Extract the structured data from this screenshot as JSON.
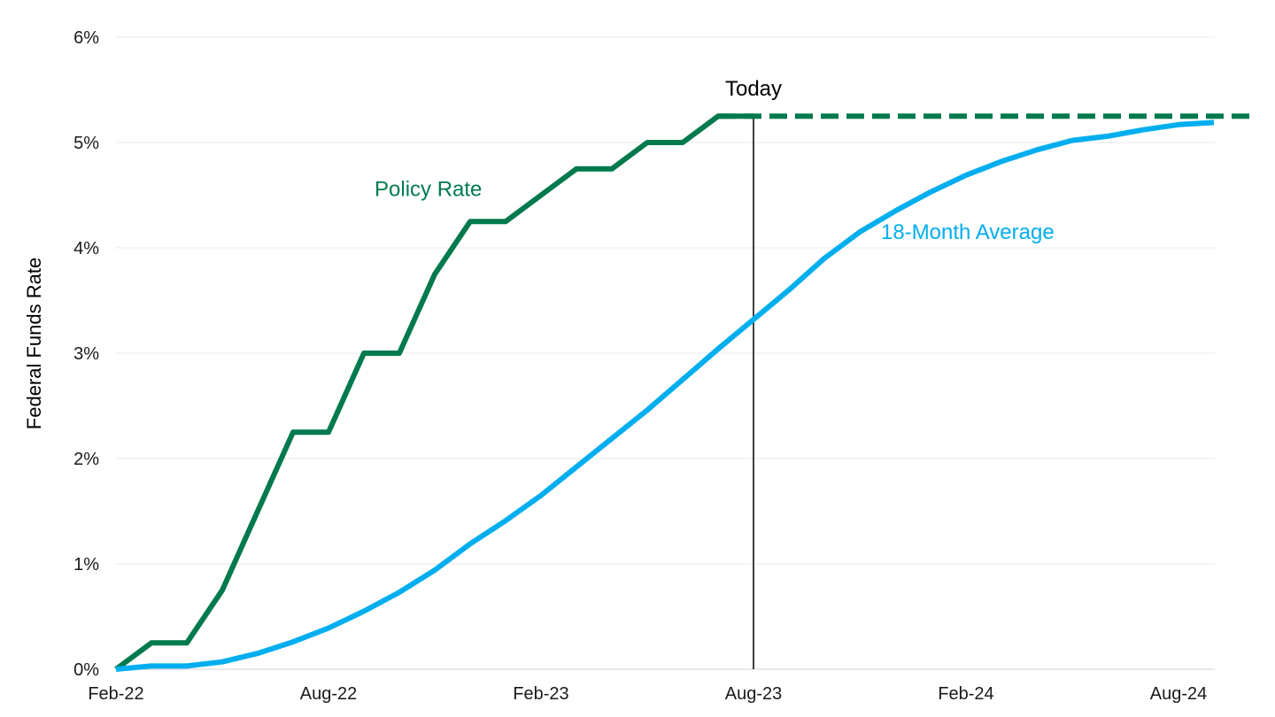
{
  "chart_data": {
    "type": "line",
    "ylabel": "Federal Funds Rate",
    "xlabel": "",
    "x_range": [
      "2022-02",
      "2024-10"
    ],
    "ylim": [
      0,
      6
    ],
    "y_ticks": [
      0,
      1,
      2,
      3,
      4,
      5,
      6
    ],
    "y_tick_labels": [
      "0%",
      "1%",
      "2%",
      "3%",
      "4%",
      "5%",
      "6%"
    ],
    "x_ticks": [
      "2022-02",
      "2022-08",
      "2023-02",
      "2023-08",
      "2024-02",
      "2024-08"
    ],
    "x_tick_labels": [
      "Feb-22",
      "Aug-22",
      "Feb-23",
      "Aug-23",
      "Feb-24",
      "Aug-24"
    ],
    "grid": "horizontal",
    "series": [
      {
        "name": "Policy Rate",
        "color": "#007A4D",
        "style": "solid",
        "points": [
          [
            "2022-02",
            0.0
          ],
          [
            "2022-03",
            0.25
          ],
          [
            "2022-04",
            0.25
          ],
          [
            "2022-05",
            0.75
          ],
          [
            "2022-06",
            1.5
          ],
          [
            "2022-07",
            2.25
          ],
          [
            "2022-08",
            2.25
          ],
          [
            "2022-09",
            3.0
          ],
          [
            "2022-10",
            3.0
          ],
          [
            "2022-11",
            3.75
          ],
          [
            "2022-12",
            4.25
          ],
          [
            "2023-01",
            4.25
          ],
          [
            "2023-02",
            4.5
          ],
          [
            "2023-03",
            4.75
          ],
          [
            "2023-04",
            4.75
          ],
          [
            "2023-05",
            5.0
          ],
          [
            "2023-06",
            5.0
          ],
          [
            "2023-07",
            5.25
          ],
          [
            "2023-08",
            5.25
          ]
        ]
      },
      {
        "name": "",
        "color": "#007A4D",
        "style": "dashed",
        "points": [
          [
            "2023-07",
            5.25
          ],
          [
            "2023-08",
            5.25
          ],
          [
            "2024-10",
            5.25
          ]
        ]
      },
      {
        "name": "18-Month Average",
        "color": "#00AEEF",
        "style": "solid",
        "points": [
          [
            "2022-02",
            0.0
          ],
          [
            "2022-03",
            0.03
          ],
          [
            "2022-04",
            0.03
          ],
          [
            "2022-05",
            0.07
          ],
          [
            "2022-06",
            0.15
          ],
          [
            "2022-07",
            0.26
          ],
          [
            "2022-08",
            0.39
          ],
          [
            "2022-09",
            0.55
          ],
          [
            "2022-10",
            0.73
          ],
          [
            "2022-11",
            0.94
          ],
          [
            "2022-12",
            1.19
          ],
          [
            "2023-01",
            1.41
          ],
          [
            "2023-02",
            1.65
          ],
          [
            "2023-03",
            1.92
          ],
          [
            "2023-04",
            2.19
          ],
          [
            "2023-05",
            2.46
          ],
          [
            "2023-06",
            2.75
          ],
          [
            "2023-07",
            3.04
          ],
          [
            "2023-08",
            3.32
          ],
          [
            "2023-09",
            3.6
          ],
          [
            "2023-10",
            3.9
          ],
          [
            "2023-11",
            4.15
          ],
          [
            "2023-12",
            4.35
          ],
          [
            "2024-01",
            4.53
          ],
          [
            "2024-02",
            4.69
          ],
          [
            "2024-03",
            4.82
          ],
          [
            "2024-04",
            4.93
          ],
          [
            "2024-05",
            5.02
          ],
          [
            "2024-06",
            5.06
          ],
          [
            "2024-07",
            5.12
          ],
          [
            "2024-08",
            5.17
          ],
          [
            "2024-09",
            5.19
          ]
        ]
      }
    ],
    "annotations": {
      "today_label": "Today",
      "today_x": "2023-08",
      "policy_label": "Policy Rate",
      "average_label": "18-Month Average"
    }
  }
}
